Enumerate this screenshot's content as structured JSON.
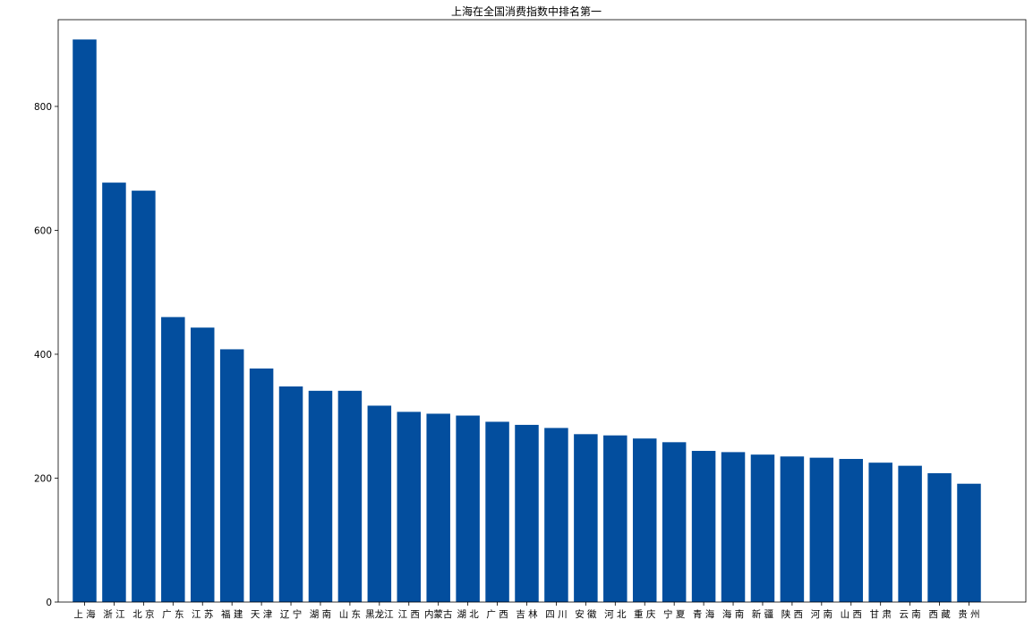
{
  "chart_data": {
    "type": "bar",
    "title": "上海在全国消费指数中排名第一",
    "xlabel": "",
    "ylabel": "",
    "categories": [
      "上海",
      "浙江",
      "北京",
      "广东",
      "江苏",
      "福建",
      "天津",
      "辽宁",
      "湖南",
      "山东",
      "黑龙江",
      "江西",
      "内蒙古",
      "湖北",
      "广西",
      "吉林",
      "四川",
      "安徽",
      "河北",
      "重庆",
      "宁夏",
      "青海",
      "海南",
      "新疆",
      "陕西",
      "河南",
      "山西",
      "甘肃",
      "云南",
      "西藏",
      "贵州"
    ],
    "display_labels": [
      "上 海",
      "浙 江",
      "北 京",
      "广 东",
      "江 苏",
      "福 建",
      "天 津",
      "辽 宁",
      "湖 南",
      "山 东",
      "黑龙江",
      "江 西",
      "内蒙古",
      "湖 北",
      "广 西",
      "吉 林",
      "四 川",
      "安 徽",
      "河 北",
      "重 庆",
      "宁 夏",
      "青 海",
      "海 南",
      "新 疆",
      "陕 西",
      "河 南",
      "山 西",
      "甘 肃",
      "云 南",
      "西 藏",
      "贵 州"
    ],
    "values": [
      908,
      677,
      664,
      460,
      443,
      408,
      377,
      348,
      341,
      341,
      317,
      307,
      304,
      301,
      291,
      286,
      281,
      271,
      269,
      264,
      258,
      244,
      242,
      238,
      235,
      233,
      231,
      225,
      220,
      208,
      191
    ],
    "ylim": [
      0,
      940
    ],
    "yticks": [
      0,
      200,
      400,
      600,
      800
    ],
    "bar_color": "#034e9e",
    "grid": false,
    "legend": "none"
  }
}
